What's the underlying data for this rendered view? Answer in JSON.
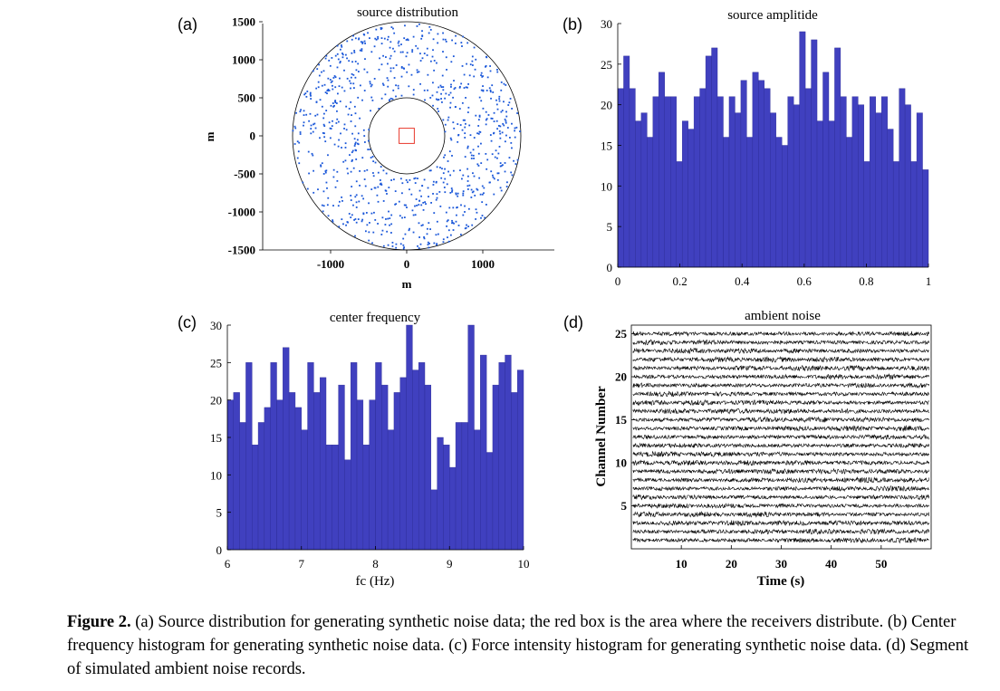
{
  "caption": {
    "label": "Figure 2.",
    "text": "(a) Source distribution for generating synthetic noise data; the red box is the area where the receivers distribute. (b) Center frequency histogram for generating synthetic noise data. (c) Force intensity histogram for generating synthetic noise data. (d) Segment of simulated ambient noise records."
  },
  "colors": {
    "bar": "#4040bf",
    "points": "#1a57d9",
    "receiver_box": "#e8392c",
    "trace": "#000000"
  },
  "chart_data": [
    {
      "id": "a",
      "panel_label": "(a)",
      "type": "scatter",
      "title": "source distribution",
      "xlabel": "m",
      "ylabel": "m",
      "xlim": [
        -1500,
        1500
      ],
      "ylim": [
        -1500,
        1500
      ],
      "xticks": [
        -1000,
        0,
        1000
      ],
      "xtick_labels": [
        "-1000",
        "0",
        "1000"
      ],
      "yticks": [
        1500,
        1000,
        500,
        0,
        -500,
        -1000,
        -1500
      ],
      "ytick_labels": [
        "1500",
        "1000",
        "500",
        "0",
        "-500",
        "-1000",
        "-1500"
      ],
      "inner_radius": 500,
      "outer_radius": 1500,
      "n_points": 900,
      "receiver_box": {
        "x": [
          -100,
          100
        ],
        "y": [
          -100,
          100
        ]
      }
    },
    {
      "id": "b",
      "panel_label": "(b)",
      "type": "bar",
      "title": "source amplitide",
      "xlabel": "",
      "ylabel": "",
      "xlim": [
        0,
        1
      ],
      "ylim": [
        0,
        30
      ],
      "xticks": [
        0,
        0.2,
        0.4,
        0.6,
        0.8,
        1
      ],
      "xtick_labels": [
        "0",
        "0.2",
        "0.4",
        "0.6",
        "0.8",
        "1"
      ],
      "yticks": [
        0,
        5,
        10,
        15,
        20,
        25,
        30
      ],
      "ytick_labels": [
        "0",
        "5",
        "10",
        "15",
        "20",
        "25",
        "30"
      ],
      "values": [
        22,
        26,
        22,
        18,
        19,
        16,
        21,
        24,
        21,
        21,
        13,
        18,
        17,
        21,
        22,
        26,
        27,
        21,
        16,
        21,
        19,
        23,
        16,
        24,
        23,
        22,
        19,
        16,
        15,
        21,
        20,
        29,
        22,
        28,
        18,
        24,
        18,
        27,
        21,
        16,
        21,
        20,
        13,
        21,
        19,
        21,
        17,
        13,
        22,
        20,
        13,
        19,
        12
      ]
    },
    {
      "id": "c",
      "panel_label": "(c)",
      "type": "bar",
      "title": "center frequency",
      "xlabel": "fc (Hz)",
      "ylabel": "",
      "xlim": [
        6,
        10
      ],
      "ylim": [
        0,
        30
      ],
      "xticks": [
        6,
        7,
        8,
        9,
        10
      ],
      "xtick_labels": [
        "6",
        "7",
        "8",
        "9",
        "10"
      ],
      "yticks": [
        0,
        5,
        10,
        15,
        20,
        25,
        30
      ],
      "ytick_labels": [
        "0",
        "5",
        "10",
        "15",
        "20",
        "25",
        "30"
      ],
      "values": [
        20,
        21,
        17,
        25,
        14,
        17,
        19,
        25,
        20,
        27,
        21,
        19,
        16,
        25,
        21,
        23,
        14,
        14,
        22,
        12,
        25,
        20,
        14,
        20,
        25,
        22,
        16,
        21,
        23,
        30,
        24,
        25,
        22,
        8,
        15,
        14,
        11,
        17,
        17,
        30,
        16,
        26,
        13,
        22,
        25,
        26,
        21,
        24
      ]
    },
    {
      "id": "d",
      "panel_label": "(d)",
      "type": "waveform",
      "title": "ambient noise",
      "xlabel": "Time (s)",
      "ylabel": "Channel Number",
      "xlim": [
        0,
        60
      ],
      "ylim": [
        0,
        26
      ],
      "xticks": [
        10,
        20,
        30,
        40,
        50
      ],
      "xtick_labels": [
        "10",
        "20",
        "30",
        "40",
        "50"
      ],
      "yticks": [
        5,
        10,
        15,
        20,
        25
      ],
      "ytick_labels": [
        "5",
        "10",
        "15",
        "20",
        "25"
      ],
      "n_channels": 25,
      "trace_amplitude": 0.32
    }
  ]
}
